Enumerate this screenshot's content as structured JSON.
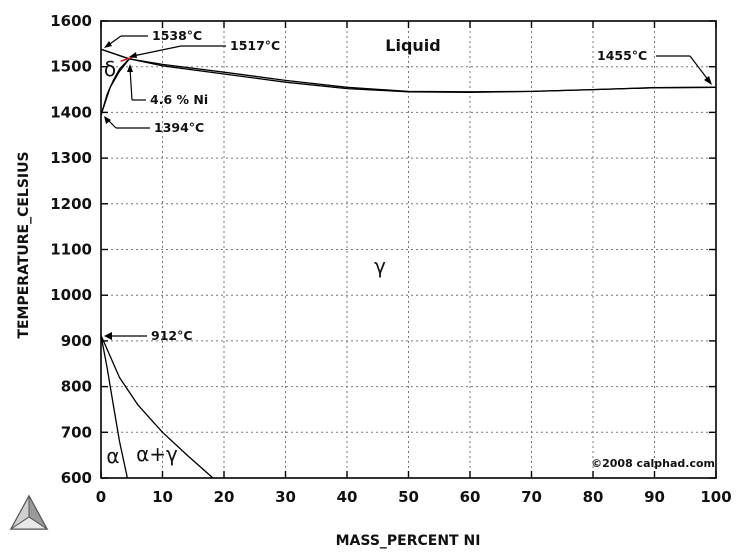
{
  "chart_data": {
    "type": "line",
    "title": "",
    "xlabel": "MASS_PERCENT NI",
    "ylabel": "TEMPERATURE_CELSIUS",
    "xlim": [
      0,
      100
    ],
    "ylim": [
      600,
      1600
    ],
    "x_ticks": [
      "0",
      "10",
      "20",
      "30",
      "40",
      "50",
      "60",
      "70",
      "80",
      "90",
      "100"
    ],
    "y_ticks": [
      "600",
      "700",
      "800",
      "900",
      "1000",
      "1100",
      "1200",
      "1300",
      "1400",
      "1500",
      "1600"
    ],
    "grid": true,
    "series": [
      {
        "name": "",
        "x": [
          0,
          4.6,
          10,
          20,
          30,
          40,
          50,
          60,
          70,
          80,
          90,
          100
        ],
        "y": [
          1538,
          1517,
          1505,
          1488,
          1470,
          1455,
          1446,
          1445,
          1446,
          1450,
          1454,
          1455
        ]
      },
      {
        "name": "",
        "x": [
          0,
          4.6,
          10,
          20,
          30,
          40,
          50,
          60,
          70,
          80,
          90,
          100
        ],
        "y": [
          1538,
          1517,
          1502,
          1484,
          1466,
          1452,
          1445,
          1444,
          1446,
          1450,
          1454,
          1455
        ]
      },
      {
        "name": "",
        "x": [
          0,
          1,
          2,
          3,
          4.6
        ],
        "y": [
          1394,
          1440,
          1470,
          1495,
          1517
        ]
      },
      {
        "name": "",
        "x": [
          0,
          1.5,
          3,
          4.6
        ],
        "y": [
          1394,
          1455,
          1490,
          1517
        ]
      },
      {
        "name": "",
        "x": [
          0,
          1,
          2,
          3,
          4.3
        ],
        "y": [
          912,
          840,
          760,
          680,
          600
        ]
      },
      {
        "name": "",
        "x": [
          0,
          3,
          6,
          10,
          14,
          18.2
        ],
        "y": [
          912,
          820,
          760,
          700,
          650,
          600
        ]
      }
    ],
    "annotations": [
      {
        "text": "1538°C",
        "x": 0,
        "y": 1538
      },
      {
        "text": "1517°C",
        "x": 4.6,
        "y": 1517
      },
      {
        "text": "4.6 % Ni",
        "x": 4.6,
        "y": 1517
      },
      {
        "text": "1394°C",
        "x": 0,
        "y": 1394
      },
      {
        "text": "1455°C",
        "x": 100,
        "y": 1455
      },
      {
        "text": "912°C",
        "x": 0,
        "y": 912
      }
    ],
    "phase_labels": [
      "Liquid",
      "δ",
      "γ",
      "α",
      "α+γ"
    ],
    "copyright": "©2008 calphad.com",
    "colors": {
      "line": "#000000",
      "highlight": "#cc2222",
      "grid": "#777777"
    }
  }
}
